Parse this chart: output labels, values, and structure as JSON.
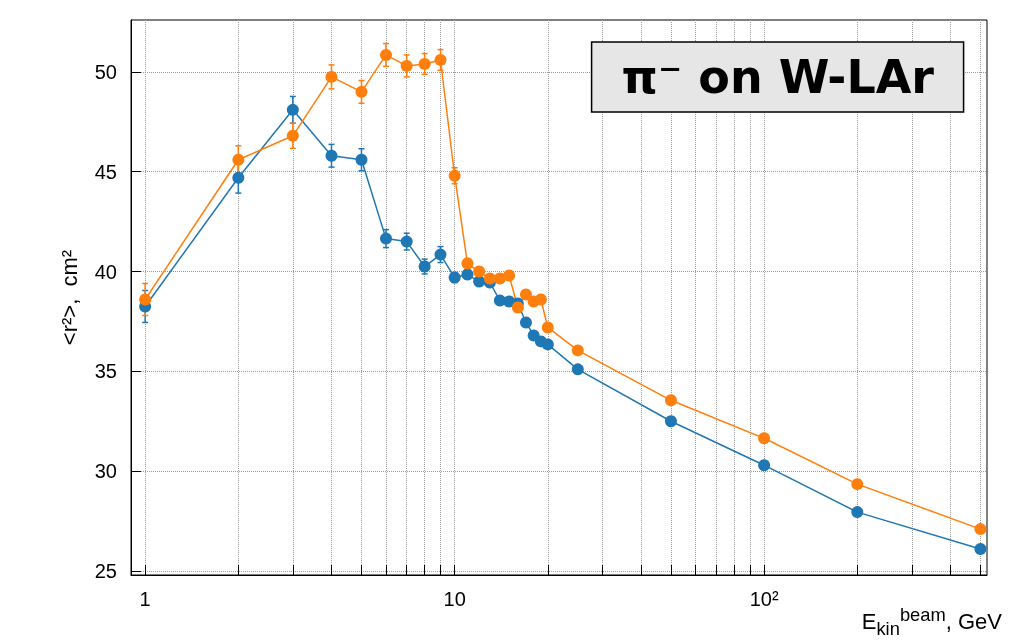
{
  "chart_data": {
    "type": "line",
    "title": "π⁻ on W-LAr",
    "xlabel": "E$_{kin}$$^{beam}$, GeV",
    "ylabel": "<r²>,  cm²",
    "log": "x",
    "grid": true,
    "marker": "circle",
    "line_style": "solid",
    "x": [
      1,
      2,
      3,
      4,
      5,
      6,
      7,
      8,
      9,
      10,
      11,
      12,
      13,
      14,
      15,
      16,
      17,
      18,
      19,
      20,
      25,
      50,
      100,
      200,
      500
    ],
    "xlim": [
      0.9,
      525
    ],
    "ylim": [
      24.8,
      52.6
    ],
    "xticks": [
      1,
      {
        "value": 2,
        "label": null
      },
      {
        "value": 3,
        "label": null
      },
      {
        "value": 4,
        "label": null
      },
      {
        "value": 5,
        "label": null
      },
      {
        "value": 6,
        "label": null
      },
      {
        "value": 7,
        "label": null
      },
      {
        "value": 8,
        "label": null
      },
      {
        "value": 9,
        "label": null
      },
      10,
      {
        "value": 20,
        "label": null
      },
      {
        "value": 30,
        "label": null
      },
      {
        "value": 40,
        "label": null
      },
      {
        "value": 50,
        "label": null
      },
      {
        "value": 60,
        "label": null
      },
      {
        "value": 70,
        "label": null
      },
      {
        "value": 80,
        "label": null
      },
      {
        "value": 90,
        "label": null
      },
      {
        "value": 100,
        "label": "10²"
      },
      {
        "value": 200,
        "label": null
      },
      {
        "value": 300,
        "label": null
      },
      {
        "value": 400,
        "label": null
      },
      {
        "value": 500,
        "label": null
      }
    ],
    "yticks": [
      25,
      30,
      35,
      40,
      45,
      50
    ],
    "series": [
      {
        "color": "#1f77b4",
        "values": [
          38.25,
          44.7,
          48.1,
          45.8,
          45.6,
          41.65,
          41.5,
          40.25,
          40.85,
          39.7,
          39.85,
          39.5,
          39.45,
          38.55,
          38.5,
          38.4,
          37.45,
          36.8,
          36.5,
          36.35,
          35.1,
          32.5,
          30.3,
          27.95,
          26.1
        ],
        "errors": [
          0.8,
          0.77,
          0.67,
          0.57,
          0.55,
          0.45,
          0.42,
          0.37,
          0.4,
          0.25,
          0.2,
          0.2,
          0.2,
          0.2,
          0.2,
          0.2,
          0.2,
          0.2,
          0.2,
          0.2,
          null,
          null,
          null,
          null,
          null
        ]
      },
      {
        "color": "#ff7f0e",
        "values": [
          38.6,
          45.6,
          46.8,
          49.75,
          49.0,
          50.85,
          50.3,
          50.4,
          50.6,
          44.8,
          40.4,
          40.0,
          39.65,
          39.65,
          39.8,
          38.2,
          38.85,
          38.5,
          38.6,
          37.2,
          36.05,
          33.55,
          31.65,
          29.35,
          27.1
        ],
        "errors": [
          0.8,
          0.7,
          0.63,
          0.6,
          0.57,
          0.57,
          0.55,
          0.52,
          0.52,
          0.4,
          0.25,
          0.2,
          0.2,
          0.2,
          0.2,
          0.2,
          0.2,
          0.2,
          0.2,
          0.2,
          null,
          null,
          null,
          null,
          null
        ]
      }
    ]
  }
}
